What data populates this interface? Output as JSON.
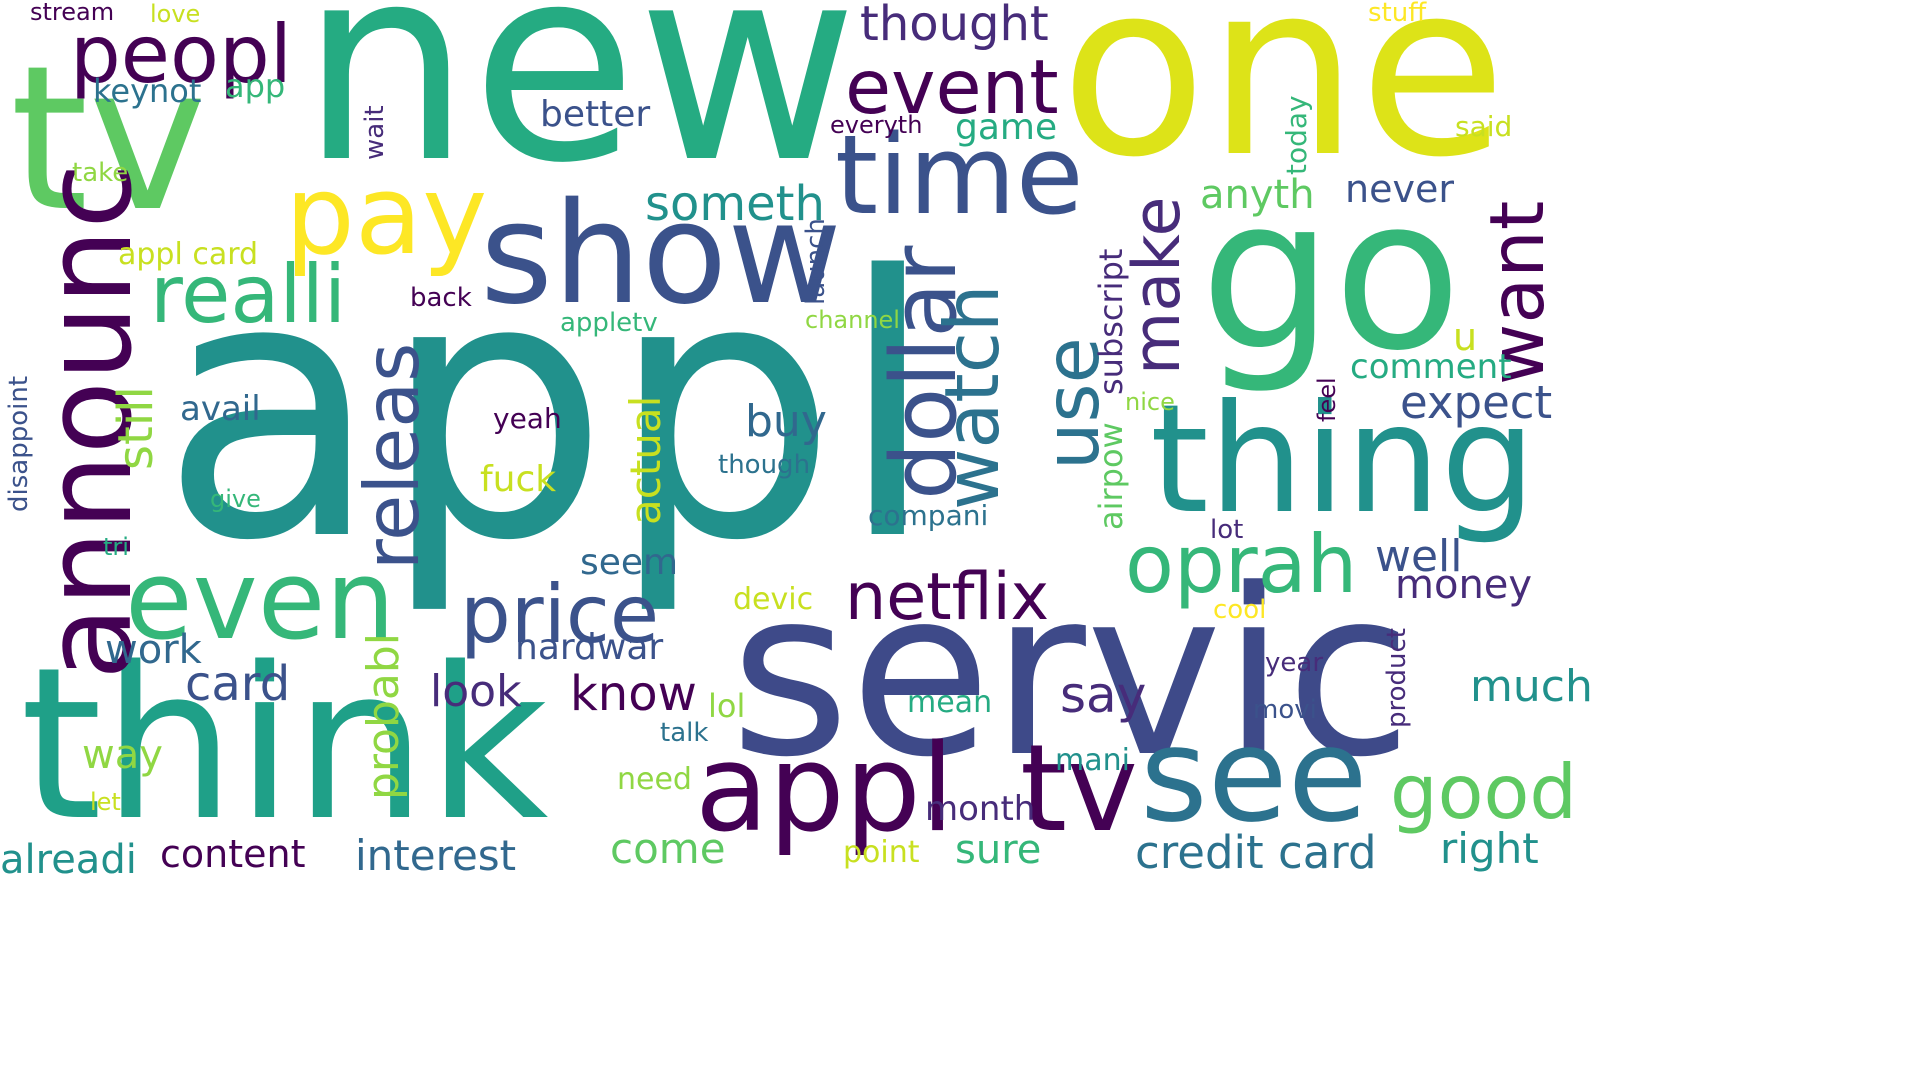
{
  "words": {
    "appl": "appl",
    "new": "new",
    "one": "one",
    "servic": "servic",
    "think": "think",
    "tv": "tv",
    "go": "go",
    "thing": "thing",
    "show": "show",
    "time": "time",
    "announc": "announc",
    "even": "even",
    "pay": "pay",
    "peopl": "peopl",
    "event": "event",
    "realli": "realli",
    "dollar": "dollar",
    "watch": "watch",
    "releas": "releas",
    "price": "price",
    "netflix": "netflix",
    "oprah": "oprah",
    "appl_2": "appl",
    "tv_2": "tv",
    "see": "see",
    "good": "good",
    "want": "want",
    "make": "make",
    "use": "use",
    "card": "card",
    "credit_card": "credit card",
    "interest": "interest",
    "content": "content",
    "know": "know",
    "say": "say",
    "someth": "someth",
    "thought": "thought",
    "expect": "expect",
    "money": "money",
    "well": "well",
    "much": "much",
    "still": "still",
    "probabl": "probabl",
    "actual": "actual",
    "buy": "buy",
    "better": "better",
    "game": "game",
    "anyth": "anyth",
    "never": "never",
    "comment": "comment",
    "hardwar": "hardwar",
    "look": "look",
    "work": "work",
    "way": "way",
    "come": "come",
    "sure": "sure",
    "right": "right",
    "alreadi": "alreadi",
    "month": "month",
    "seem": "seem",
    "avail": "avail",
    "fuck": "fuck",
    "subscript": "subscript",
    "airpow": "airpow",
    "keynot": "keynot",
    "app": "app",
    "appl_card": "appl card",
    "back": "back",
    "appletv": "appletv",
    "launch": "launch",
    "channel": "channel",
    "everyth": "everyth",
    "today": "today",
    "wait": "wait",
    "take": "take",
    "said": "said",
    "stuff": "stuff",
    "stream": "stream",
    "love": "love",
    "u": "u",
    "nice": "nice",
    "feel": "feel",
    "yeah": "yeah",
    "though": "though",
    "give": "give",
    "tri": "tri",
    "disappoint": "disappoint",
    "compani": "compani",
    "lot": "lot",
    "devic": "devic",
    "cool": "cool",
    "lol": "lol",
    "mean": "mean",
    "talk": "talk",
    "need": "need",
    "let": "let",
    "mani": "mani",
    "point": "point",
    "year": "year",
    "movi": "movi",
    "product": "product"
  },
  "colors": {
    "dark_purple": "#440154",
    "indigo": "#472c7a",
    "blue_violet": "#3b528b",
    "steel_blue": "#31688e",
    "teal_blue": "#2c728e",
    "teal": "#21918c",
    "sea_green": "#25ab82",
    "green": "#35b779",
    "light_green": "#5ec962",
    "lime": "#90d743",
    "yellow_green": "#c8e020",
    "yellow": "#fde725"
  }
}
